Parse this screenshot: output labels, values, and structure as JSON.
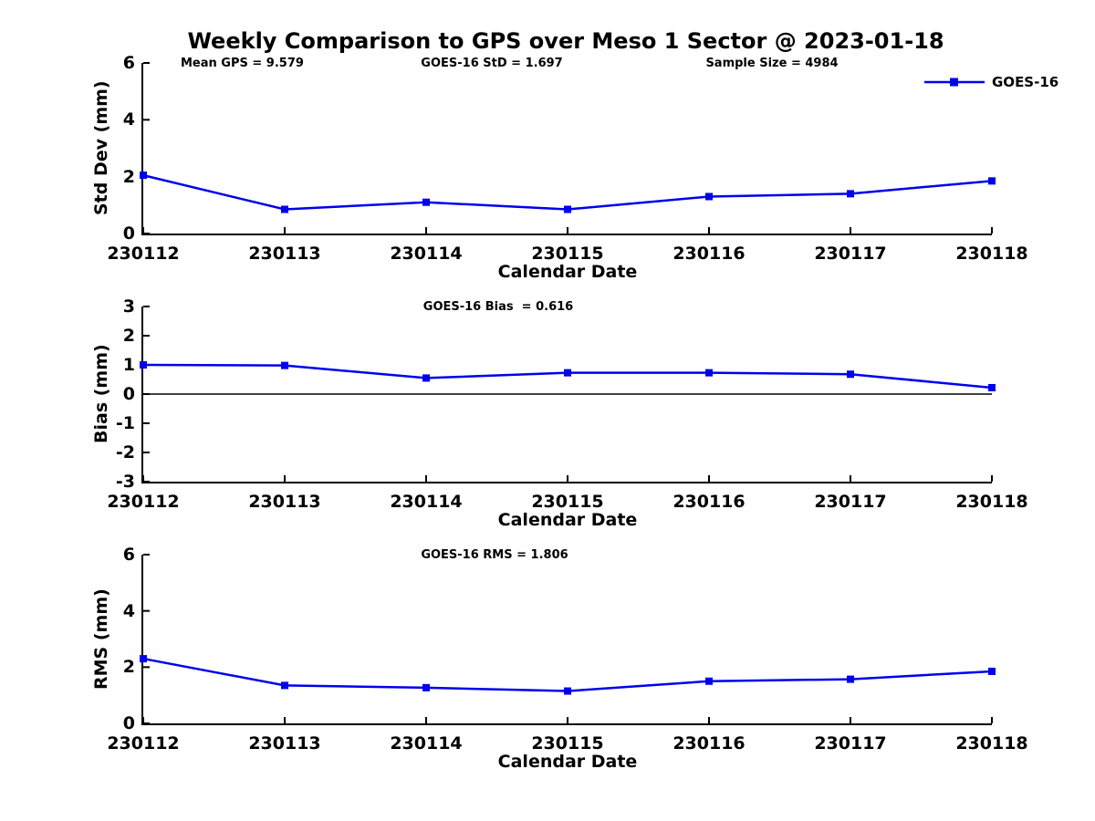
{
  "figure": {
    "title": "Weekly Comparison to GPS over Meso 1 Sector @ 2023-01-18",
    "legend": {
      "label": "GOES-16",
      "color": "#0000EE"
    }
  },
  "chart_data": [
    {
      "type": "line",
      "name": "std-dev-vs-date",
      "ylabel": "Std Dev (mm)",
      "xlabel": "Calendar Date",
      "categories": [
        "230112",
        "230113",
        "230114",
        "230115",
        "230116",
        "230117",
        "230118"
      ],
      "series": [
        {
          "name": "GOES-16",
          "color": "#0000EE",
          "values": [
            2.05,
            0.85,
            1.1,
            0.85,
            1.3,
            1.4,
            1.85
          ]
        }
      ],
      "ylim": [
        0,
        6
      ],
      "yticks": [
        0,
        2,
        4,
        6
      ],
      "grid": false,
      "legend_position": "upper-right-outside",
      "annotations": [
        {
          "text": "Mean GPS = 9.579"
        },
        {
          "text": "GOES-16 StD = 1.697"
        },
        {
          "text": "Sample Size = 4984"
        }
      ]
    },
    {
      "type": "line",
      "name": "bias-vs-date",
      "ylabel": "Bias (mm)",
      "xlabel": "Calendar Date",
      "categories": [
        "230112",
        "230113",
        "230114",
        "230115",
        "230116",
        "230117",
        "230118"
      ],
      "series": [
        {
          "name": "GOES-16",
          "color": "#0000EE",
          "values": [
            1.0,
            0.98,
            0.55,
            0.73,
            0.73,
            0.68,
            0.22
          ]
        }
      ],
      "ylim": [
        -3,
        3
      ],
      "yticks": [
        3,
        2,
        1,
        0,
        -1,
        -2,
        -3
      ],
      "grid": false,
      "zero_line": true,
      "annotations": [
        {
          "text": "GOES-16 Bias  = 0.616"
        }
      ]
    },
    {
      "type": "line",
      "name": "rms-vs-date",
      "ylabel": "RMS (mm)",
      "xlabel": "Calendar Date",
      "categories": [
        "230112",
        "230113",
        "230114",
        "230115",
        "230116",
        "230117",
        "230118"
      ],
      "series": [
        {
          "name": "GOES-16",
          "color": "#0000EE",
          "values": [
            2.3,
            1.35,
            1.27,
            1.15,
            1.5,
            1.57,
            1.85
          ]
        }
      ],
      "ylim": [
        0,
        6
      ],
      "yticks": [
        0,
        2,
        4,
        6
      ],
      "grid": false,
      "annotations": [
        {
          "text": "GOES-16 RMS = 1.806"
        }
      ]
    }
  ]
}
